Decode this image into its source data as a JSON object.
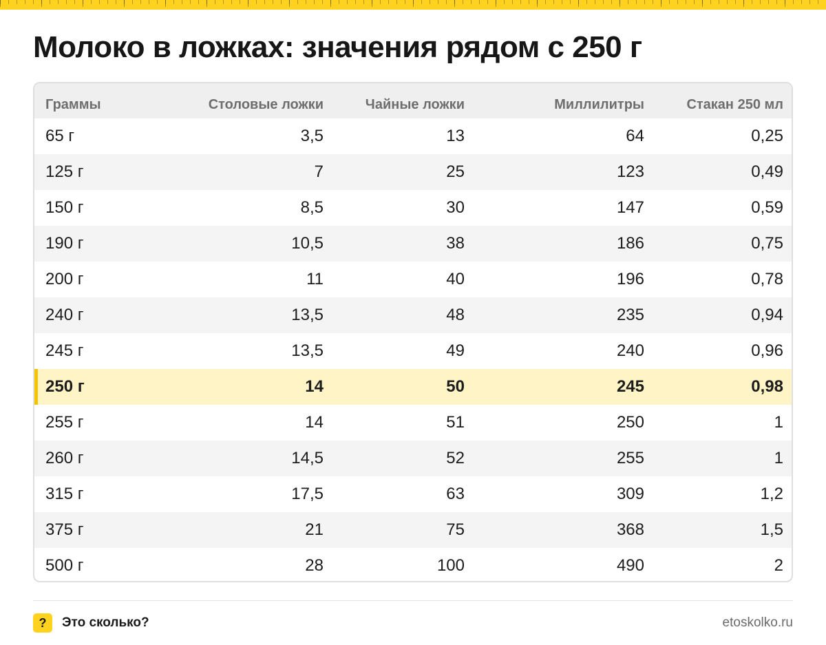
{
  "title": "Молоко в ложках: значения рядом с 250 г",
  "table": {
    "headers": [
      "Граммы",
      "Столовые ложки",
      "Чайные ложки",
      "Миллилитры",
      "Стакан 250 мл"
    ],
    "rows": [
      [
        "65 г",
        "3,5",
        "13",
        "64",
        "0,25"
      ],
      [
        "125 г",
        "7",
        "25",
        "123",
        "0,49"
      ],
      [
        "150 г",
        "8,5",
        "30",
        "147",
        "0,59"
      ],
      [
        "190 г",
        "10,5",
        "38",
        "186",
        "0,75"
      ],
      [
        "200 г",
        "11",
        "40",
        "196",
        "0,78"
      ],
      [
        "240 г",
        "13,5",
        "48",
        "235",
        "0,94"
      ],
      [
        "245 г",
        "13,5",
        "49",
        "240",
        "0,96"
      ],
      [
        "250 г",
        "14",
        "50",
        "245",
        "0,98"
      ],
      [
        "255 г",
        "14",
        "51",
        "250",
        "1"
      ],
      [
        "260 г",
        "14,5",
        "52",
        "255",
        "1"
      ],
      [
        "315 г",
        "17,5",
        "63",
        "309",
        "1,2"
      ],
      [
        "375 г",
        "21",
        "75",
        "368",
        "1,5"
      ],
      [
        "500 г",
        "28",
        "100",
        "490",
        "2"
      ]
    ],
    "highlight_row": 7
  },
  "footer": {
    "badge": "?",
    "brand": "Это сколько?",
    "site": "etoskolko.ru"
  },
  "colors": {
    "accent": "#ffd21f",
    "highlight_bg": "#fff4c6",
    "highlight_bar": "#f5c400"
  }
}
